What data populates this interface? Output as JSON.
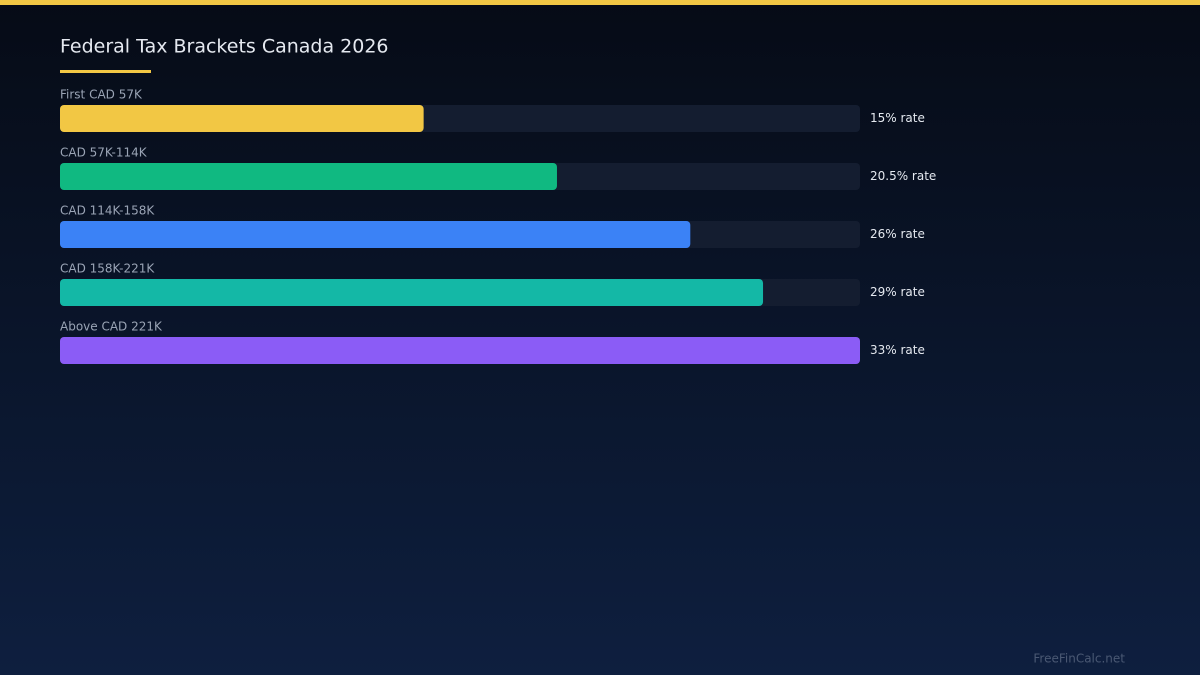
{
  "chart_data": {
    "type": "bar",
    "orientation": "horizontal",
    "title": "Federal Tax Brackets Canada 2026",
    "categories": [
      "First CAD 57K",
      "CAD 57K-114K",
      "CAD 114K-158K",
      "CAD 158K-221K",
      "Above CAD 221K"
    ],
    "values": [
      15,
      20.5,
      26,
      29,
      33
    ],
    "value_labels": [
      "15% rate",
      "20.5% rate",
      "26% rate",
      "29% rate",
      "33% rate"
    ],
    "colors": [
      "#f2c744",
      "#10b981",
      "#3b82f6",
      "#14b8a6",
      "#8b5cf6"
    ],
    "xlim": [
      0,
      33
    ],
    "watermark": "FreeFinCalc.net"
  }
}
